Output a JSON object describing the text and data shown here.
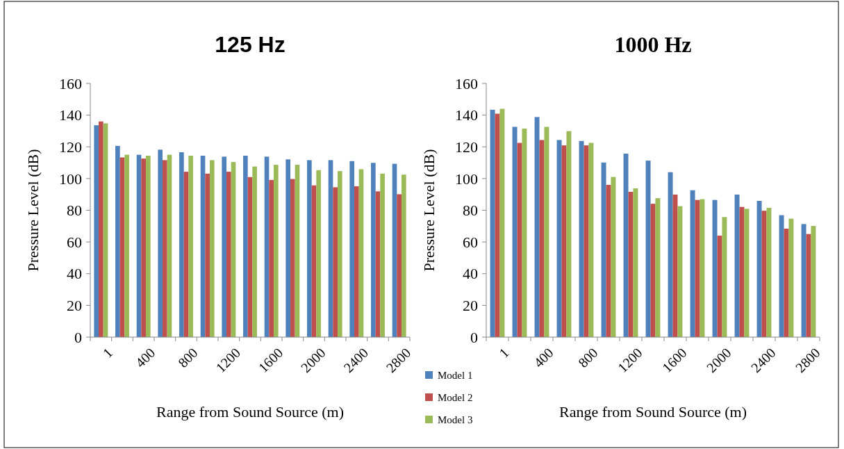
{
  "chart_data": [
    {
      "type": "bar",
      "title": "125 Hz",
      "xlabel": "Range from Sound Source (m)",
      "ylabel": "Pressure Level (dB)",
      "categories": [
        "1",
        null,
        "400",
        null,
        "800",
        null,
        "1200",
        null,
        "1600",
        null,
        "2000",
        null,
        "2400",
        null,
        "2800"
      ],
      "ylim": [
        0,
        160
      ],
      "yticks": [
        0,
        20,
        40,
        60,
        80,
        100,
        120,
        140,
        160
      ],
      "grid": false,
      "legend": "bottom right",
      "series": [
        {
          "name": "Model 1",
          "color": "#4f81bd",
          "values": [
            133.6,
            120.6,
            115,
            118.2,
            116.6,
            114.4,
            113.8,
            114.4,
            113.8,
            112.1,
            111.6,
            111.6,
            111,
            109.9,
            109.3
          ]
        },
        {
          "name": "Model 2",
          "color": "#c0504d",
          "values": [
            136,
            113.3,
            112.6,
            111.6,
            104.3,
            103.1,
            104.3,
            100.9,
            99.1,
            99.7,
            95.7,
            94.5,
            95.1,
            91.9,
            90.1
          ]
        },
        {
          "name": "Model 3",
          "color": "#9bbb59",
          "values": [
            134.8,
            115,
            114.4,
            115,
            114.4,
            111.6,
            110.4,
            107.6,
            108.7,
            108.7,
            105.3,
            104.7,
            105.9,
            103.1,
            102.5
          ]
        }
      ]
    },
    {
      "type": "bar",
      "title": "1000 Hz",
      "xlabel": "Range from Sound Source (m)",
      "ylabel": "Pressure Level (dB)",
      "categories": [
        "1",
        null,
        "400",
        null,
        "800",
        null,
        "1200",
        null,
        "1600",
        null,
        "2000",
        null,
        "2400",
        null,
        "2800"
      ],
      "ylim": [
        0,
        160
      ],
      "yticks": [
        0,
        20,
        40,
        60,
        80,
        100,
        120,
        140,
        160
      ],
      "grid": false,
      "series": [
        {
          "color": "#4f81bd",
          "values": [
            143.4,
            132.6,
            138.8,
            124.3,
            123.7,
            110.1,
            115.7,
            111.3,
            104,
            92.6,
            86.5,
            89.9,
            85.9,
            76.9,
            71.3
          ]
        },
        {
          "color": "#c0504d",
          "values": [
            140.9,
            122.5,
            124.3,
            120.9,
            120.9,
            96,
            91.6,
            84.1,
            89.9,
            86.5,
            64,
            82.1,
            79.7,
            68.4,
            65
          ]
        },
        {
          "color": "#9bbb59",
          "values": [
            144,
            131.5,
            132.6,
            129.9,
            122.5,
            101,
            93.8,
            87.6,
            82.6,
            87,
            75.7,
            80.9,
            81.5,
            74.7,
            70.1
          ]
        }
      ]
    }
  ]
}
